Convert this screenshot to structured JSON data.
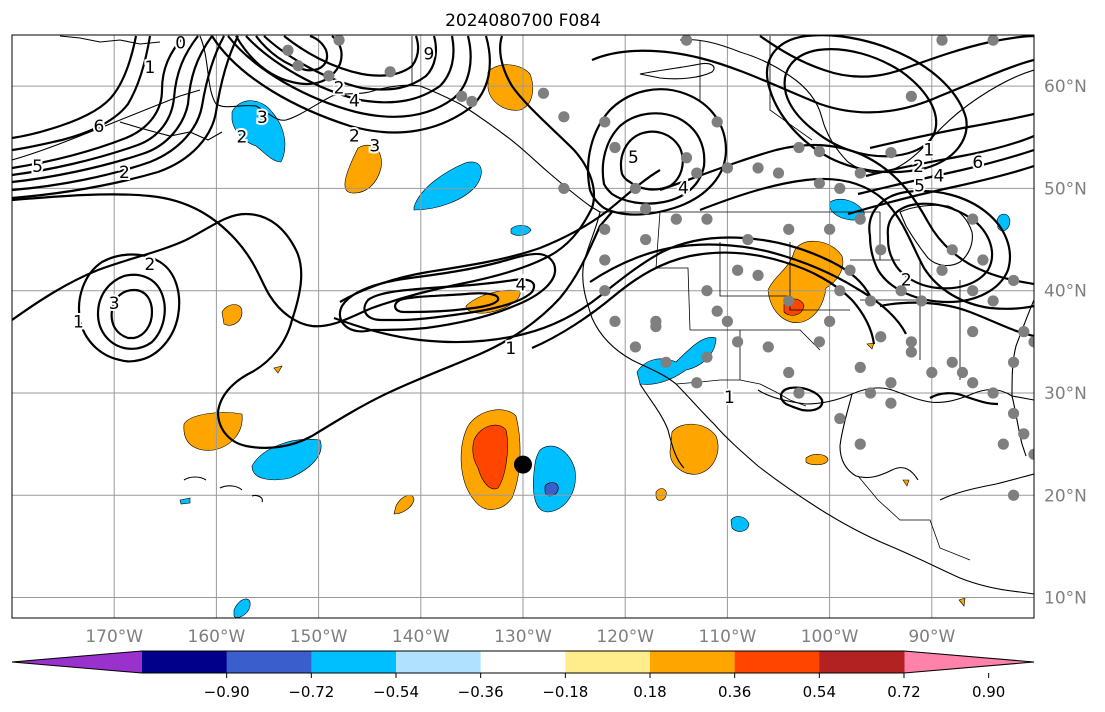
{
  "title": "2024080700 F084",
  "colors": {
    "background": "#ffffff",
    "grid": "#9a9a9a",
    "station": "#7f7f7f",
    "contour": "#000000",
    "colorbar": [
      "#9932cc",
      "#00008b",
      "#3a5fcd",
      "#00bfff",
      "#b0e2ff",
      "#ffffff",
      "#ffec8b",
      "#ffa500",
      "#ff4500",
      "#b22222",
      "#ff82ab"
    ]
  },
  "map": {
    "lon_range": [
      -180,
      -80
    ],
    "lat_range": [
      8,
      65
    ],
    "lon_ticks": [
      {
        "value": -170,
        "label": "170°W"
      },
      {
        "value": -160,
        "label": "160°W"
      },
      {
        "value": -150,
        "label": "150°W"
      },
      {
        "value": -140,
        "label": "140°W"
      },
      {
        "value": -130,
        "label": "130°W"
      },
      {
        "value": -120,
        "label": "120°W"
      },
      {
        "value": -110,
        "label": "110°W"
      },
      {
        "value": -100,
        "label": "100°W"
      },
      {
        "value": -90,
        "label": "90°W"
      }
    ],
    "lat_ticks": [
      {
        "value": 60,
        "label": "60°N"
      },
      {
        "value": 50,
        "label": "50°N"
      },
      {
        "value": 40,
        "label": "40°N"
      },
      {
        "value": 30,
        "label": "30°N"
      },
      {
        "value": 20,
        "label": "20°N"
      },
      {
        "value": 10,
        "label": "10°N"
      }
    ],
    "contour_labels": [
      {
        "text": "2",
        "lon": -169,
        "lat": 51.0
      },
      {
        "text": "6",
        "lon": -171.5,
        "lat": 55.5
      },
      {
        "text": "5",
        "lon": -177.5,
        "lat": 51.6
      },
      {
        "text": "1",
        "lon": -166.5,
        "lat": 61.3
      },
      {
        "text": "0",
        "lon": -163.5,
        "lat": 63.7
      },
      {
        "text": "2",
        "lon": -157.5,
        "lat": 54.5
      },
      {
        "text": "3",
        "lon": -155.5,
        "lat": 56.4
      },
      {
        "text": "2",
        "lon": -148,
        "lat": 59.3
      },
      {
        "text": "4",
        "lon": -146.5,
        "lat": 58.0
      },
      {
        "text": "2",
        "lon": -146.5,
        "lat": 54.6
      },
      {
        "text": "3",
        "lon": -144.5,
        "lat": 53.6
      },
      {
        "text": "9",
        "lon": -139.2,
        "lat": 62.6
      },
      {
        "text": "2",
        "lon": -166.5,
        "lat": 42.0
      },
      {
        "text": "3",
        "lon": -170.0,
        "lat": 38.2
      },
      {
        "text": "1",
        "lon": -173.5,
        "lat": 36.4
      },
      {
        "text": "4",
        "lon": -130.2,
        "lat": 40.0
      },
      {
        "text": "1",
        "lon": -131.2,
        "lat": 33.8
      },
      {
        "text": "5",
        "lon": -119.2,
        "lat": 52.5
      },
      {
        "text": "4",
        "lon": -114.3,
        "lat": 49.5
      },
      {
        "text": "1",
        "lon": -109.8,
        "lat": 29.0
      },
      {
        "text": "1",
        "lon": -90.3,
        "lat": 53.2
      },
      {
        "text": "2",
        "lon": -91.3,
        "lat": 51.6
      },
      {
        "text": "4",
        "lon": -89.3,
        "lat": 50.7
      },
      {
        "text": "6",
        "lon": -85.5,
        "lat": 52.0
      },
      {
        "text": "5",
        "lon": -91.2,
        "lat": 49.7
      },
      {
        "text": "2",
        "lon": -92.5,
        "lat": 40.5
      }
    ],
    "stations": [
      [
        -153,
        63.5
      ],
      [
        -152,
        62
      ],
      [
        -148,
        64.5
      ],
      [
        -149,
        61
      ],
      [
        -143,
        61.4
      ],
      [
        -136,
        59
      ],
      [
        -135,
        58.5
      ],
      [
        -128,
        59.3
      ],
      [
        -126,
        57
      ],
      [
        -122,
        56.5
      ],
      [
        -121,
        54
      ],
      [
        -114,
        64.5
      ],
      [
        -114,
        53
      ],
      [
        -113,
        51.5
      ],
      [
        -111,
        56.5
      ],
      [
        -110,
        52
      ],
      [
        -107,
        52
      ],
      [
        -105,
        51.5
      ],
      [
        -101,
        50.5
      ],
      [
        -103,
        54
      ],
      [
        -101,
        53.6
      ],
      [
        -99,
        50
      ],
      [
        -97,
        51.5
      ],
      [
        -94,
        53.5
      ],
      [
        -92,
        59
      ],
      [
        -89,
        64.5
      ],
      [
        -84,
        64.5
      ],
      [
        -126,
        50
      ],
      [
        -122,
        43
      ],
      [
        -122,
        40
      ],
      [
        -121,
        37
      ],
      [
        -119,
        34.5
      ],
      [
        -117,
        36.5
      ],
      [
        -116,
        33
      ],
      [
        -113,
        31
      ],
      [
        -112,
        33.5
      ],
      [
        -112,
        40
      ],
      [
        -111,
        38
      ],
      [
        -109,
        42
      ],
      [
        -107,
        41.5
      ],
      [
        -104,
        39
      ],
      [
        -106,
        34.5
      ],
      [
        -104,
        32
      ],
      [
        -101,
        35
      ],
      [
        -100,
        37
      ],
      [
        -97,
        32.5
      ],
      [
        -96,
        30
      ],
      [
        -94,
        29
      ],
      [
        -97,
        25
      ],
      [
        -99,
        27.5
      ],
      [
        -95,
        35.5
      ],
      [
        -92,
        35
      ],
      [
        -90,
        32
      ],
      [
        -88,
        33
      ],
      [
        -86,
        31
      ],
      [
        -84,
        30
      ],
      [
        -82,
        28
      ],
      [
        -81,
        26
      ],
      [
        -83,
        25
      ],
      [
        -80,
        24
      ],
      [
        -82,
        33
      ],
      [
        -80,
        35
      ],
      [
        -84,
        39
      ],
      [
        -89,
        42
      ],
      [
        -88,
        44
      ],
      [
        -85,
        43
      ],
      [
        -86,
        47
      ],
      [
        -95,
        44
      ],
      [
        -97,
        47
      ],
      [
        -100,
        46
      ],
      [
        -104,
        46
      ],
      [
        -108,
        45
      ],
      [
        -115,
        47
      ],
      [
        -118,
        45
      ],
      [
        -118,
        48
      ],
      [
        -122,
        46
      ],
      [
        -119,
        50
      ],
      [
        -112,
        47
      ],
      [
        -99,
        40
      ],
      [
        -96,
        39
      ],
      [
        -91,
        39
      ],
      [
        -86,
        36
      ],
      [
        -86,
        40
      ],
      [
        -81,
        36
      ],
      [
        -98,
        42
      ],
      [
        -93,
        40
      ],
      [
        -82,
        41
      ],
      [
        -92,
        34
      ],
      [
        -103,
        30
      ],
      [
        -117,
        37
      ],
      [
        -94,
        31
      ],
      [
        -110,
        37
      ],
      [
        -87,
        32
      ],
      [
        -109,
        35
      ],
      [
        -82,
        20
      ]
    ],
    "cyclone": {
      "lon": -130,
      "lat": 23
    }
  },
  "colorbar": {
    "tick_labels": [
      "−0.90",
      "−0.72",
      "−0.54",
      "−0.36",
      "−0.18",
      "0.18",
      "0.36",
      "0.54",
      "0.72",
      "0.90"
    ]
  }
}
